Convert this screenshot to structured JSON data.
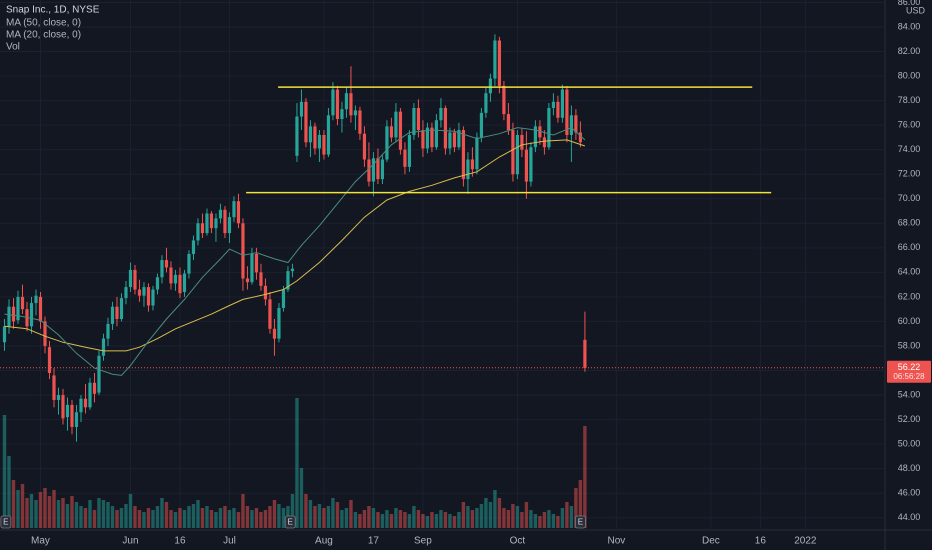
{
  "chart_data": {
    "type": "candlestick",
    "title": "Snap Inc., 1D, NYSE",
    "currency": "USD",
    "volume_name": "Vol",
    "up_color": "#26a69a",
    "down_color": "#ef5350",
    "grid": true,
    "xlim": [
      -1,
      195.7
    ],
    "ylim": [
      43,
      86.2
    ],
    "vol_lim": [
      0,
      150
    ],
    "yticks": [
      {
        "value": 44,
        "label": "44.00"
      },
      {
        "value": 46,
        "label": "46.00"
      },
      {
        "value": 48,
        "label": "48.00"
      },
      {
        "value": 50,
        "label": "50.00"
      },
      {
        "value": 52,
        "label": "52.00"
      },
      {
        "value": 54,
        "label": "54.00"
      },
      {
        "value": 56,
        "label": "56.00"
      },
      {
        "value": 58,
        "label": "58.00"
      },
      {
        "value": 60,
        "label": "60.00"
      },
      {
        "value": 62,
        "label": "62.00"
      },
      {
        "value": 64,
        "label": "64.00"
      },
      {
        "value": 66,
        "label": "66.00"
      },
      {
        "value": 68,
        "label": "68.00"
      },
      {
        "value": 70,
        "label": "70.00"
      },
      {
        "value": 72,
        "label": "72.00"
      },
      {
        "value": 74,
        "label": "74.00"
      },
      {
        "value": 76,
        "label": "76.00"
      },
      {
        "value": 78,
        "label": "78.00"
      },
      {
        "value": 80,
        "label": "80.00"
      },
      {
        "value": 82,
        "label": "82.00"
      },
      {
        "value": 84,
        "label": "84.00"
      },
      {
        "value": 86,
        "label": "86.00"
      }
    ],
    "xticks": [
      {
        "value": 8,
        "label": "May"
      },
      {
        "value": 28,
        "label": "Jun"
      },
      {
        "value": 39,
        "label": "16"
      },
      {
        "value": 50,
        "label": "Jul"
      },
      {
        "value": 71,
        "label": "Aug"
      },
      {
        "value": 82,
        "label": "17"
      },
      {
        "value": 93,
        "label": "Sep"
      },
      {
        "value": 114,
        "label": "Oct"
      },
      {
        "value": 136,
        "label": "Nov"
      },
      {
        "value": 157,
        "label": "Dec"
      },
      {
        "value": 168,
        "label": "16"
      },
      {
        "value": 178,
        "label": "2022"
      }
    ],
    "candles": [
      [
        58.3,
        60.2,
        57.6,
        59.6
      ],
      [
        59.6,
        61.8,
        59,
        61.2
      ],
      [
        61.2,
        61.9,
        59.4,
        60
      ],
      [
        60.1,
        62.5,
        59.8,
        62
      ],
      [
        62,
        63,
        60.6,
        61
      ],
      [
        61,
        61.6,
        59.2,
        59.6
      ],
      [
        59.6,
        62,
        59,
        61.5
      ],
      [
        61.5,
        62.6,
        60.5,
        62.1
      ],
      [
        62,
        62.4,
        59.4,
        60
      ],
      [
        60,
        60.4,
        57.4,
        58
      ],
      [
        57.9,
        58.4,
        55.3,
        55.8
      ],
      [
        55.6,
        56.2,
        53,
        53.6
      ],
      [
        53.6,
        54.6,
        52.4,
        54
      ],
      [
        54,
        54.5,
        51.6,
        52.1
      ],
      [
        52.2,
        53.8,
        51.1,
        53.2
      ],
      [
        53.2,
        53.6,
        50.8,
        51.4
      ],
      [
        51.4,
        53.2,
        50.2,
        52.6
      ],
      [
        52.6,
        54,
        51.8,
        53.7
      ],
      [
        53.7,
        54.9,
        52.5,
        53
      ],
      [
        53,
        55.4,
        52.8,
        55
      ],
      [
        55,
        55.8,
        53.4,
        54.1
      ],
      [
        54.2,
        57.6,
        54,
        57.2
      ],
      [
        57.2,
        59,
        56.8,
        58.6
      ],
      [
        58.6,
        60.3,
        58,
        59.8
      ],
      [
        59.8,
        61.6,
        59.3,
        61.2
      ],
      [
        61.2,
        62,
        59.6,
        60.2
      ],
      [
        60.2,
        62.3,
        60,
        61.9
      ],
      [
        61.9,
        63.3,
        61.4,
        62.8
      ],
      [
        62.8,
        64.8,
        62.4,
        64.2
      ],
      [
        64.2,
        64.6,
        62.2,
        62.6
      ],
      [
        62.6,
        63.4,
        61.6,
        62.1
      ],
      [
        62.1,
        63.2,
        61.2,
        62.8
      ],
      [
        62.8,
        63.1,
        60.8,
        61.3
      ],
      [
        61.3,
        62.9,
        60.9,
        62.6
      ],
      [
        62.6,
        63.9,
        62.2,
        63.6
      ],
      [
        63.6,
        65.4,
        63.1,
        65
      ],
      [
        65,
        66,
        64,
        64.4
      ],
      [
        64.4,
        64.9,
        62.6,
        63.1
      ],
      [
        63.1,
        64.2,
        62.5,
        63.8
      ],
      [
        63.8,
        64.4,
        61.9,
        62.3
      ],
      [
        62.4,
        64.2,
        62,
        63.9
      ],
      [
        63.9,
        65.8,
        63.5,
        65.5
      ],
      [
        65.5,
        67,
        65,
        66.6
      ],
      [
        66.6,
        68.4,
        66.2,
        68
      ],
      [
        68,
        68.8,
        66.8,
        67.2
      ],
      [
        67.2,
        69.2,
        67,
        68.8
      ],
      [
        68.8,
        69,
        67.2,
        67.6
      ],
      [
        67.6,
        68.8,
        66.5,
        68.4
      ],
      [
        68.4,
        69.6,
        68,
        69.1
      ],
      [
        69.1,
        69.4,
        66.8,
        67.2
      ],
      [
        67.2,
        68.9,
        66.4,
        68.5
      ],
      [
        68.5,
        70.2,
        68.1,
        69.8
      ],
      [
        69.8,
        70.4,
        67.6,
        68
      ],
      [
        68,
        68.4,
        62.5,
        63.5
      ],
      [
        63.5,
        64.5,
        62.6,
        63.2
      ],
      [
        63.2,
        66,
        63,
        65.5
      ],
      [
        65.5,
        66,
        63.4,
        64
      ],
      [
        64,
        64.7,
        62.5,
        62.9
      ],
      [
        62.9,
        63.5,
        61.3,
        61.8
      ],
      [
        61.8,
        62.4,
        59,
        59.4
      ],
      [
        59.4,
        60.2,
        57.2,
        58.6
      ],
      [
        58.6,
        61.5,
        58.3,
        61.1
      ],
      [
        61.1,
        62.9,
        60.8,
        62.6
      ],
      [
        62.6,
        64.5,
        62.4,
        64.1
      ],
      [
        64.1,
        64.7,
        63.6,
        64.3
      ],
      [
        73.5,
        77.8,
        73,
        76.7
      ],
      [
        76.7,
        78.9,
        75.6,
        77.9
      ],
      [
        77.9,
        78.2,
        74.2,
        74.6
      ],
      [
        74.6,
        76.4,
        73.4,
        75.9
      ],
      [
        75.9,
        76.2,
        73.6,
        74.1
      ],
      [
        74.1,
        75.6,
        73,
        75.2
      ],
      [
        75.2,
        75.6,
        73.2,
        73.6
      ],
      [
        73.6,
        77.4,
        73.4,
        76.8
      ],
      [
        76.8,
        79.5,
        76.4,
        78.9
      ],
      [
        78.9,
        79.2,
        76,
        76.5
      ],
      [
        76.5,
        77.9,
        75.4,
        77.3
      ],
      [
        77.3,
        79.1,
        76.6,
        78.6
      ],
      [
        78.6,
        80.8,
        76.2,
        76.8
      ],
      [
        76.8,
        77.6,
        75.6,
        77.2
      ],
      [
        77.2,
        77.5,
        74.8,
        75.3
      ],
      [
        75.3,
        75.9,
        72.6,
        73.2
      ],
      [
        73.2,
        74.6,
        71,
        71.4
      ],
      [
        71.4,
        73.8,
        70.2,
        73.3
      ],
      [
        73.3,
        74.1,
        71.2,
        71.6
      ],
      [
        71.6,
        73.6,
        71.2,
        73.2
      ],
      [
        73.2,
        76.4,
        73,
        75.9
      ],
      [
        75.9,
        76.6,
        74.6,
        75
      ],
      [
        75,
        77.8,
        74.6,
        77.1
      ],
      [
        77.1,
        77.4,
        73.6,
        74
      ],
      [
        74,
        74.6,
        72,
        72.6
      ],
      [
        72.6,
        75.6,
        72.2,
        75.2
      ],
      [
        75.2,
        77.8,
        74.8,
        77.4
      ],
      [
        77.4,
        78.1,
        75,
        75.6
      ],
      [
        75.6,
        76.4,
        73.4,
        74.1
      ],
      [
        74.1,
        76.2,
        73.7,
        75.8
      ],
      [
        75.8,
        76.2,
        73.8,
        74.2
      ],
      [
        74.2,
        76.9,
        74,
        76.4
      ],
      [
        76.4,
        78.2,
        75.8,
        77.4
      ],
      [
        77.4,
        77.6,
        73.6,
        74.1
      ],
      [
        74.1,
        75.8,
        73.6,
        75.4
      ],
      [
        75.4,
        75.7,
        73.8,
        74.2
      ],
      [
        74.2,
        76.2,
        74,
        75.6
      ],
      [
        75.6,
        75.9,
        71,
        71.6
      ],
      [
        71.6,
        73.8,
        70.4,
        73.2
      ],
      [
        73.2,
        74.2,
        71.8,
        72.4
      ],
      [
        72.4,
        75.4,
        72,
        75
      ],
      [
        75,
        77.4,
        74.6,
        77
      ],
      [
        77,
        79.1,
        76.6,
        78.6
      ],
      [
        78.6,
        80.2,
        77.9,
        79.8
      ],
      [
        79.8,
        83.4,
        79.2,
        82.9
      ],
      [
        82.9,
        83.2,
        78.6,
        79.2
      ],
      [
        79.2,
        79.6,
        76.4,
        76.9
      ],
      [
        76.9,
        77.8,
        75.2,
        75.6
      ],
      [
        75.6,
        76.2,
        71.4,
        72
      ],
      [
        72,
        75.6,
        71.6,
        75.2
      ],
      [
        75.2,
        75.7,
        73.4,
        74
      ],
      [
        74,
        75.5,
        70,
        71.4
      ],
      [
        71.4,
        74.6,
        71,
        74.2
      ],
      [
        74.2,
        76.4,
        73.8,
        75.9
      ],
      [
        75.9,
        76.4,
        74.4,
        75
      ],
      [
        75,
        75.6,
        73.6,
        74.2
      ],
      [
        74.2,
        77.8,
        74,
        77.4
      ],
      [
        77.4,
        78.6,
        76.8,
        77.9
      ],
      [
        77.9,
        78.4,
        76.2,
        76.6
      ],
      [
        76.6,
        79.3,
        76.2,
        78.9
      ],
      [
        78.9,
        79.2,
        74.6,
        75.2
      ],
      [
        75.2,
        77.6,
        73,
        76.8
      ],
      [
        76.8,
        77.3,
        74.8,
        75.4
      ],
      [
        75.4,
        76.3,
        74.2,
        74.6
      ],
      [
        58.5,
        60.8,
        55.9,
        56.22
      ]
    ],
    "volume": [
      113,
      72,
      48,
      38,
      44,
      30,
      34,
      28,
      36,
      40,
      32,
      38,
      28,
      30,
      24,
      32,
      26,
      22,
      20,
      28,
      18,
      30,
      28,
      26,
      22,
      18,
      20,
      24,
      34,
      22,
      18,
      16,
      20,
      18,
      22,
      30,
      26,
      18,
      16,
      20,
      18,
      22,
      24,
      28,
      20,
      22,
      18,
      16,
      20,
      22,
      18,
      20,
      16,
      34,
      22,
      18,
      20,
      16,
      18,
      22,
      28,
      24,
      20,
      22,
      34,
      130,
      60,
      34,
      28,
      22,
      24,
      20,
      22,
      30,
      26,
      18,
      20,
      28,
      16,
      14,
      18,
      22,
      20,
      16,
      14,
      18,
      14,
      20,
      18,
      16,
      14,
      22,
      18,
      14,
      12,
      16,
      14,
      18,
      16,
      14,
      12,
      16,
      26,
      22,
      18,
      20,
      24,
      30,
      26,
      38,
      30,
      20,
      18,
      24,
      22,
      16,
      26,
      18,
      14,
      12,
      16,
      18,
      14,
      12,
      20,
      26,
      22,
      40,
      48,
      102
    ],
    "series": [
      {
        "name": "MA (50, close, 0)",
        "color": "#d9bd4c",
        "x": [
          0,
          5,
          9,
          13,
          18,
          22,
          27,
          30,
          34,
          38,
          42,
          46,
          50,
          53,
          58,
          62,
          65,
          70,
          75,
          80,
          85,
          90,
          95,
          100,
          105,
          110,
          115,
          120,
          125,
          129
        ],
        "values": [
          59.6,
          59.4,
          58.8,
          58.3,
          57.9,
          57.6,
          57.6,
          57.9,
          58.6,
          59.4,
          60,
          60.6,
          61.3,
          61.8,
          62.2,
          62.6,
          63.3,
          64.8,
          66.6,
          68.5,
          69.9,
          70.6,
          71.1,
          71.7,
          72.2,
          73.4,
          74.4,
          74.7,
          74.8,
          74.3
        ]
      },
      {
        "name": "MA (20, close, 0)",
        "color": "#4b8c7e",
        "x": [
          0,
          4,
          8,
          12,
          16,
          20,
          24,
          26,
          28,
          32,
          36,
          40,
          44,
          48,
          50,
          53,
          56,
          60,
          63,
          66,
          70,
          74,
          78,
          82,
          86,
          90,
          95,
          100,
          105,
          110,
          114,
          118,
          122,
          126,
          129
        ],
        "values": [
          60.6,
          60.4,
          60.1,
          58.9,
          57.4,
          56.2,
          55.7,
          55.6,
          56.4,
          58.4,
          60.2,
          61.8,
          63.6,
          65.1,
          65.9,
          65.4,
          65.6,
          65.1,
          64.8,
          66.2,
          67.8,
          69.6,
          71.4,
          72.8,
          74.4,
          75.4,
          75.6,
          75.5,
          74.9,
          75.3,
          75.8,
          75.6,
          75.2,
          75.8,
          74.8
        ]
      }
    ],
    "drawing_color": "#f2e33a",
    "drawings": [
      {
        "value": 79.1,
        "x": [
          60.8,
          166.2
        ]
      },
      {
        "value": 70.5,
        "x": [
          53.7,
          170.4
        ]
      }
    ],
    "earnings_label": "E",
    "earnings_x": [
      0.3,
      63.5,
      128
    ],
    "countdown": "06:56:28"
  }
}
